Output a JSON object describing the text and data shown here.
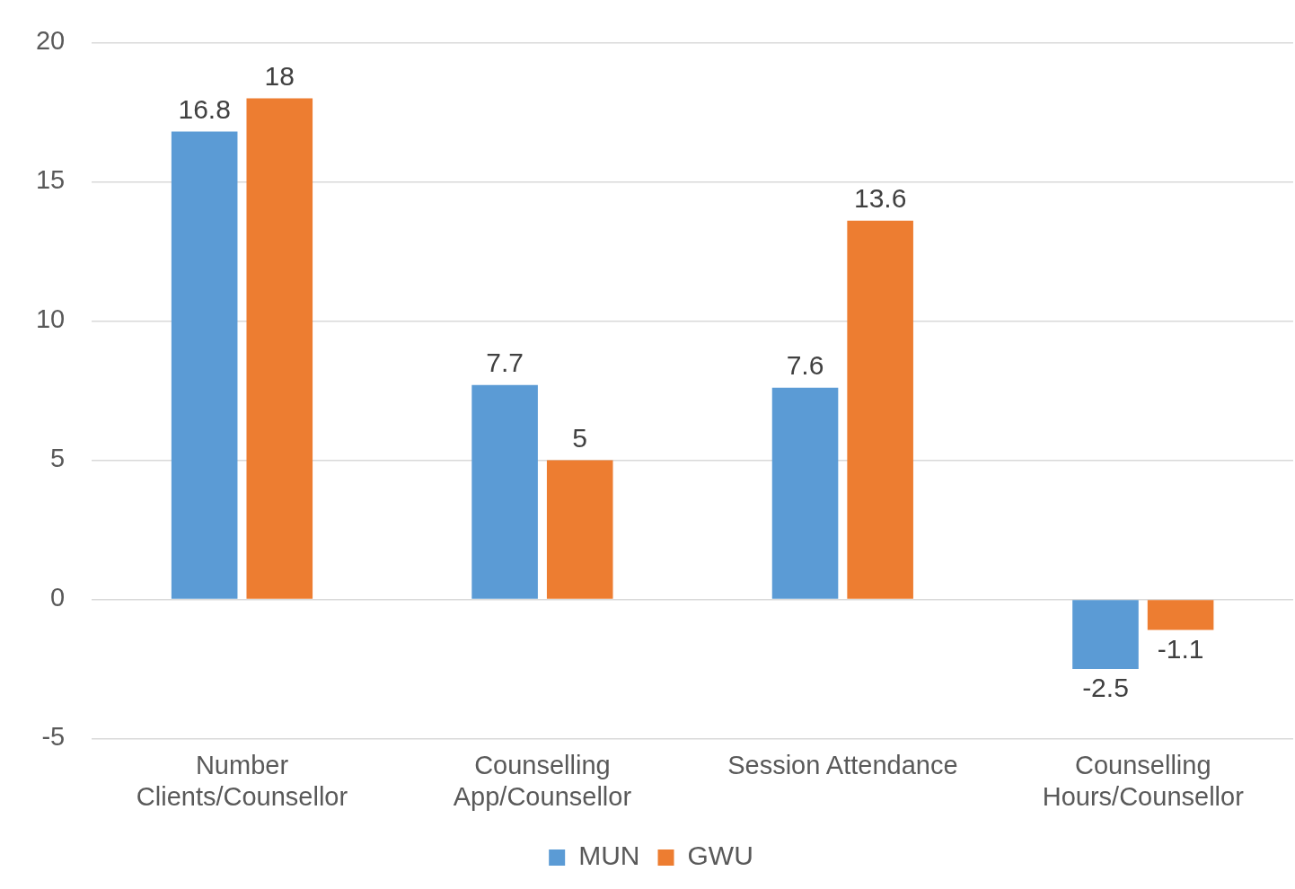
{
  "chart_data": {
    "type": "bar",
    "categories": [
      "Number\nClients/Counsellor",
      "Counselling\nApp/Counsellor",
      "Session Attendance",
      "Counselling\nHours/Counsellor"
    ],
    "series": [
      {
        "name": "MUN",
        "color": "#5b9bd5",
        "values": [
          16.8,
          7.7,
          7.6,
          -2.5
        ]
      },
      {
        "name": "GWU",
        "color": "#ed7d31",
        "values": [
          18,
          5,
          13.6,
          -1.1
        ]
      }
    ],
    "ylim": [
      -5,
      20
    ],
    "yticks": [
      -5,
      0,
      5,
      10,
      15,
      20
    ],
    "grid": "y",
    "legend": "bottom",
    "data_labels": true
  }
}
